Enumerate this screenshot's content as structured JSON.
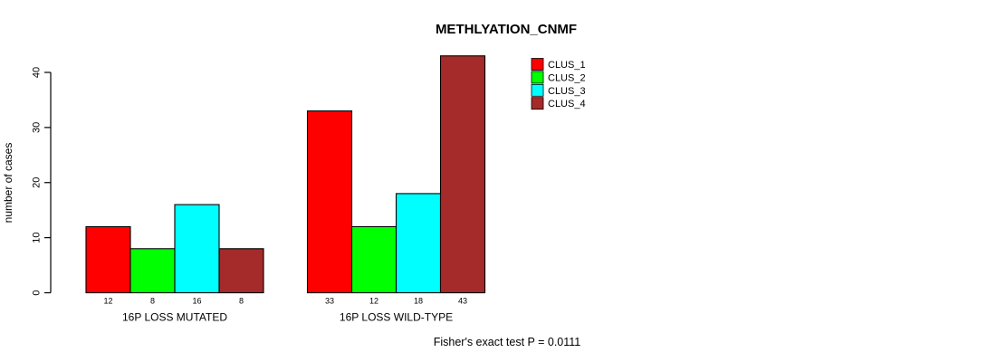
{
  "title": "METHLYATION_CNMF",
  "footnote": "Fisher's exact test P = 0.0111",
  "y_axis": {
    "label": "number of cases",
    "ticks": [
      0,
      10,
      20,
      30,
      40
    ]
  },
  "legend": {
    "entries": [
      {
        "label": "CLUS_1",
        "color": "#ff0000"
      },
      {
        "label": "CLUS_2",
        "color": "#00ff00"
      },
      {
        "label": "CLUS_3",
        "color": "#00ffff"
      },
      {
        "label": "CLUS_4",
        "color": "#a52a2a"
      }
    ]
  },
  "chart_data": {
    "type": "bar",
    "title": "METHLYATION_CNMF",
    "xlabel": "",
    "ylabel": "number of cases",
    "categories": [
      "16P LOSS MUTATED",
      "16P LOSS WILD-TYPE"
    ],
    "series": [
      {
        "name": "CLUS_1",
        "color": "#ff0000",
        "values": [
          12,
          33
        ]
      },
      {
        "name": "CLUS_2",
        "color": "#00ff00",
        "values": [
          8,
          12
        ]
      },
      {
        "name": "CLUS_3",
        "color": "#00ffff",
        "values": [
          16,
          18
        ]
      },
      {
        "name": "CLUS_4",
        "color": "#a52a2a",
        "values": [
          8,
          43
        ]
      }
    ],
    "bar_value_labels": [
      [
        12,
        8,
        16,
        8
      ],
      [
        33,
        12,
        18,
        43
      ]
    ],
    "yticks": [
      0,
      10,
      20,
      30,
      40
    ],
    "ylim": [
      0,
      43
    ],
    "grid": false,
    "legend_position": "top-right-inside",
    "annotation": "Fisher's exact test P = 0.0111"
  }
}
